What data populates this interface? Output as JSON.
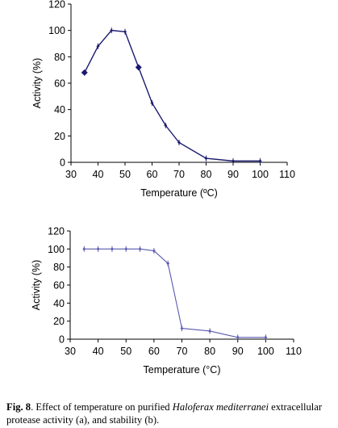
{
  "chart_data": [
    {
      "type": "line",
      "title": "",
      "xlabel": "Temperature (ºC)",
      "ylabel": "Activity (%)",
      "xlim": [
        30,
        110
      ],
      "ylim": [
        0,
        120
      ],
      "xticks": [
        30,
        40,
        50,
        60,
        70,
        80,
        90,
        100,
        110
      ],
      "yticks": [
        0,
        20,
        40,
        60,
        80,
        100,
        120
      ],
      "grid": false,
      "series": [
        {
          "color": "#1a1a6e",
          "x": [
            35,
            40,
            45,
            50,
            55,
            60,
            65,
            70,
            80,
            90,
            100
          ],
          "y": [
            68,
            88,
            100,
            99,
            72,
            45,
            28,
            15,
            3,
            1,
            1
          ]
        }
      ]
    },
    {
      "type": "line",
      "title": "",
      "xlabel": "Temperature (°C)",
      "ylabel": "Activity (%)",
      "xlim": [
        30,
        110
      ],
      "ylim": [
        0,
        120
      ],
      "xticks": [
        30,
        40,
        50,
        60,
        70,
        80,
        90,
        100,
        110
      ],
      "yticks": [
        0,
        20,
        40,
        60,
        80,
        100,
        120
      ],
      "grid": false,
      "series": [
        {
          "color": "#5a5ab0",
          "x": [
            35,
            40,
            45,
            50,
            55,
            60,
            65,
            70,
            80,
            90,
            100
          ],
          "y": [
            100,
            100,
            100,
            100,
            100,
            98,
            84,
            12,
            9,
            2,
            2
          ]
        }
      ]
    }
  ],
  "caption": {
    "label": "Fig. 8",
    "text_before": ". Effect of temperature on purified ",
    "species": "Haloferax mediterranei",
    "text_after": " extracellular protease activity (a), and stability (b)."
  }
}
